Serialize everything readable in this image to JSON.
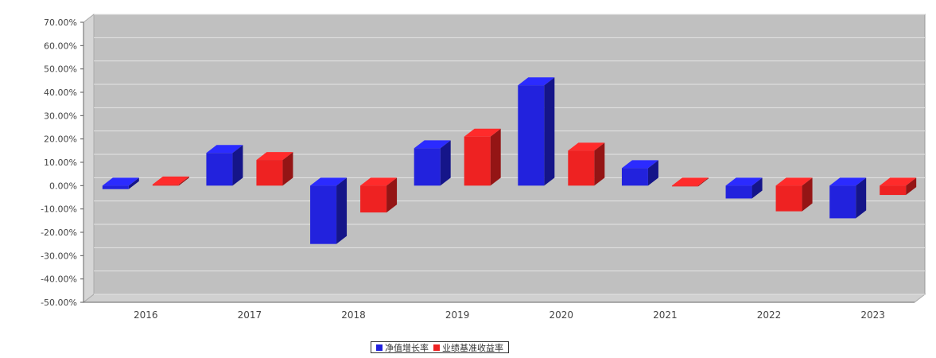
{
  "chart_data": {
    "type": "bar",
    "categories": [
      "2016",
      "2017",
      "2018",
      "2019",
      "2020",
      "2021",
      "2022",
      "2023"
    ],
    "series": [
      {
        "name": "净值增长率",
        "color": "#2222dd",
        "values": [
          -1.5,
          14.0,
          -25.0,
          16.0,
          43.0,
          7.5,
          -5.5,
          -14.0
        ]
      },
      {
        "name": "业绩基准收益率",
        "color": "#ee2222",
        "values": [
          0.5,
          11.0,
          -11.5,
          21.0,
          15.0,
          0.0,
          -11.0,
          -4.0
        ]
      }
    ],
    "ylim": [
      -50,
      70
    ],
    "yticks": [
      "70.00%",
      "60.00%",
      "50.00%",
      "40.00%",
      "30.00%",
      "20.00%",
      "10.00%",
      "0.00%",
      "-10.00%",
      "-20.00%",
      "-30.00%",
      "-40.00%",
      "-50.00%"
    ],
    "grid": true,
    "legend": "bottom-center",
    "plot_background": "#c0c0c0"
  }
}
